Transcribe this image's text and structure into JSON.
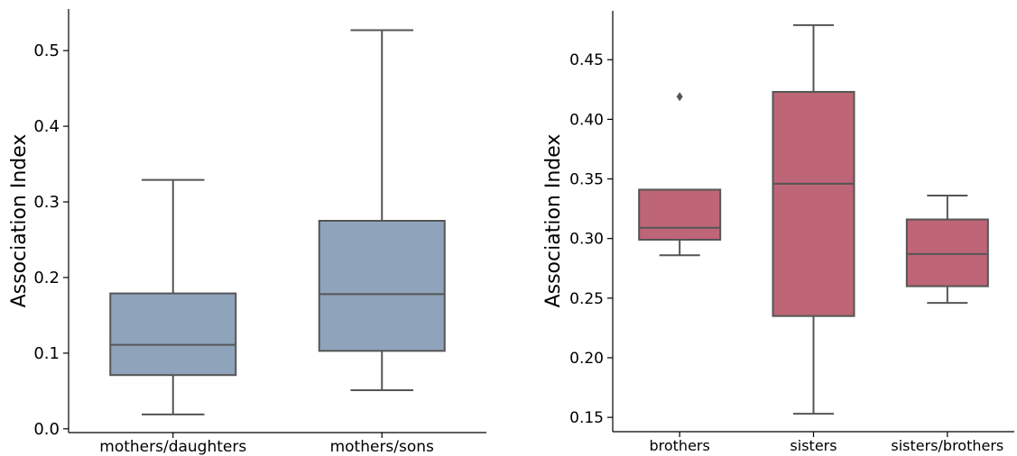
{
  "colors": {
    "left_box": "#8fa3bb",
    "right_box": "#be6577",
    "line": "#555555",
    "axis": "#000000"
  },
  "chart_data": [
    {
      "type": "box",
      "xlabel": "",
      "ylabel": "Association Index",
      "ylim": [
        -0.005,
        0.555
      ],
      "yticks": [
        0.0,
        0.1,
        0.2,
        0.3,
        0.4,
        0.5
      ],
      "ytick_labels": [
        "0.0",
        "0.1",
        "0.2",
        "0.3",
        "0.4",
        "0.5"
      ],
      "categories": [
        "mothers/daughters",
        "mothers/sons"
      ],
      "boxes": [
        {
          "category": "mothers/daughters",
          "whisker_low": 0.019,
          "q1": 0.071,
          "median": 0.111,
          "q3": 0.179,
          "whisker_high": 0.329,
          "outliers": []
        },
        {
          "category": "mothers/sons",
          "whisker_low": 0.051,
          "q1": 0.103,
          "median": 0.178,
          "q3": 0.275,
          "whisker_high": 0.527,
          "outliers": []
        }
      ],
      "grid": false,
      "color": "#8fa3bb"
    },
    {
      "type": "box",
      "xlabel": "",
      "ylabel": "Association Index",
      "ylim": [
        0.138,
        0.491
      ],
      "yticks": [
        0.15,
        0.2,
        0.25,
        0.3,
        0.35,
        0.4,
        0.45
      ],
      "ytick_labels": [
        "0.15",
        "0.20",
        "0.25",
        "0.30",
        "0.35",
        "0.40",
        "0.45"
      ],
      "categories": [
        "brothers",
        "sisters",
        "sisters/brothers"
      ],
      "boxes": [
        {
          "category": "brothers",
          "whisker_low": 0.286,
          "q1": 0.299,
          "median": 0.309,
          "q3": 0.341,
          "whisker_high": 0.341,
          "outliers": [
            0.419
          ]
        },
        {
          "category": "sisters",
          "whisker_low": 0.153,
          "q1": 0.235,
          "median": 0.346,
          "q3": 0.423,
          "whisker_high": 0.479,
          "outliers": []
        },
        {
          "category": "sisters/brothers",
          "whisker_low": 0.246,
          "q1": 0.26,
          "median": 0.287,
          "q3": 0.316,
          "whisker_high": 0.336,
          "outliers": []
        }
      ],
      "grid": false,
      "color": "#be6577"
    }
  ]
}
